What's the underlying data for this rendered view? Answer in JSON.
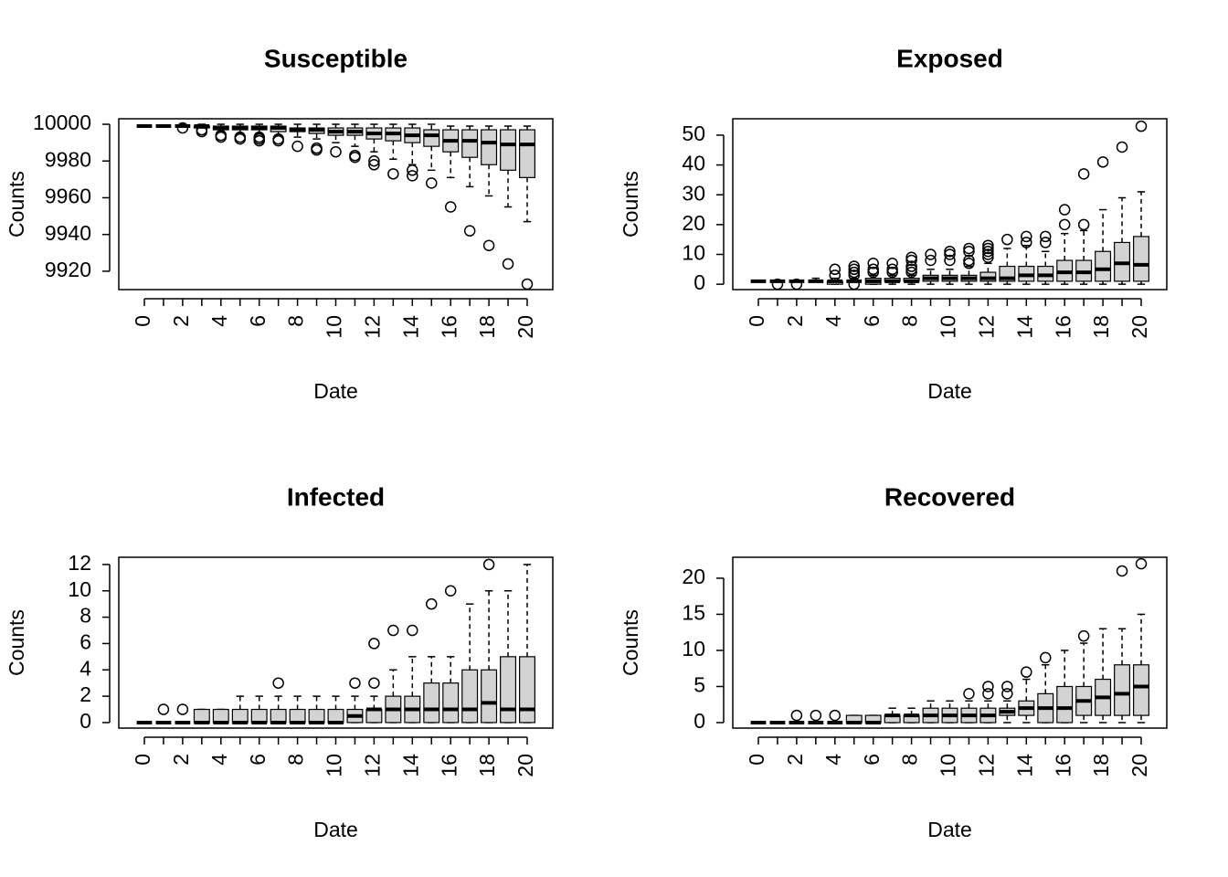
{
  "chart_data": [
    {
      "type": "box",
      "title": "Susceptible",
      "xlabel": "Date",
      "ylabel": "Counts",
      "color": "#d3d3d3",
      "categories": [
        "0",
        null,
        "2",
        null,
        "4",
        null,
        "6",
        null,
        "8",
        null,
        "10",
        null,
        "12",
        null,
        "14",
        null,
        "16",
        null,
        "18",
        null,
        "20"
      ],
      "ylim": [
        9910,
        10003
      ],
      "yticks": [
        9920,
        9940,
        9960,
        9980,
        10000
      ],
      "min": [
        9999,
        9999,
        9999,
        9998,
        9996,
        9995,
        9995,
        9994,
        9993,
        9992,
        9990,
        9988,
        9985,
        9981,
        9978,
        9975,
        9971,
        9966,
        9961,
        9955,
        9947
      ],
      "q1": [
        9999,
        9999,
        9999,
        9998,
        9997,
        9997,
        9997,
        9996,
        9996,
        9995,
        9994,
        9994,
        9992,
        9991,
        9990,
        9988,
        9985,
        9982,
        9978,
        9975,
        9971
      ],
      "median": [
        9999,
        9999,
        9999,
        9999,
        9998,
        9998,
        9998,
        9998,
        9997,
        9997,
        9996,
        9996,
        9995,
        9995,
        9994,
        9994,
        9991,
        9991,
        9990,
        9989,
        9989
      ],
      "q3": [
        9999,
        9999,
        9999,
        9999,
        9999,
        9999,
        9999,
        9999,
        9998,
        9998,
        9998,
        9998,
        9998,
        9998,
        9998,
        9997,
        9997,
        9997,
        9997,
        9997,
        9997
      ],
      "max": [
        9999,
        9999,
        10000,
        10000,
        10000,
        10000,
        10000,
        10000,
        10000,
        10000,
        10000,
        10000,
        10000,
        10000,
        10000,
        10000,
        9999,
        9999,
        9999,
        9999,
        9999
      ],
      "outliers": [
        [],
        [],
        [
          9998
        ],
        [
          9997,
          9996
        ],
        [
          9994,
          9993
        ],
        [
          9993,
          9992
        ],
        [
          9993,
          9992,
          9991
        ],
        [
          9992,
          9991
        ],
        [
          9988
        ],
        [
          9987,
          9986
        ],
        [
          9985
        ],
        [
          9983,
          9982
        ],
        [
          9980,
          9978
        ],
        [
          9973
        ],
        [
          9975,
          9972
        ],
        [
          9968
        ],
        [
          9955
        ],
        [
          9942
        ],
        [
          9934
        ],
        [
          9924
        ],
        [
          9913
        ]
      ]
    },
    {
      "type": "box",
      "title": "Exposed",
      "xlabel": "Date",
      "ylabel": "Counts",
      "color": "#d3d3d3",
      "categories": [
        "0",
        null,
        "2",
        null,
        "4",
        null,
        "6",
        null,
        "8",
        null,
        "10",
        null,
        "12",
        null,
        "14",
        null,
        "16",
        null,
        "18",
        null,
        "20"
      ],
      "ylim": [
        -1.8,
        55.5
      ],
      "yticks": [
        0,
        10,
        20,
        30,
        40,
        50
      ],
      "min": [
        1,
        1,
        1,
        1,
        0,
        1,
        0,
        0,
        0,
        0,
        0,
        0,
        0,
        0,
        0,
        0,
        0,
        0,
        0,
        0,
        0
      ],
      "q1": [
        1,
        1,
        1,
        1,
        0,
        1,
        0,
        1,
        1,
        1,
        1,
        1,
        1,
        1,
        1,
        1,
        1,
        1,
        1,
        1,
        1
      ],
      "median": [
        1,
        1,
        1,
        1,
        1,
        1,
        1,
        1,
        1,
        2,
        2,
        2,
        2,
        2,
        3,
        3,
        4,
        4,
        5,
        7,
        6.5
      ],
      "q3": [
        1,
        1,
        1,
        1,
        1,
        1,
        2,
        2,
        2,
        3,
        3,
        3,
        4,
        6,
        6,
        6,
        8,
        8,
        11,
        14,
        16
      ],
      "max": [
        1,
        1,
        1,
        2,
        2,
        2,
        3,
        3,
        3,
        5,
        5,
        6,
        7,
        12,
        13,
        11,
        17,
        18,
        25,
        29,
        31
      ],
      "outliers": [
        [],
        [
          0
        ],
        [
          0
        ],
        [],
        [
          5,
          3
        ],
        [
          6,
          5,
          4,
          3,
          0
        ],
        [
          7,
          5,
          4
        ],
        [
          7,
          5,
          4
        ],
        [
          9,
          8,
          6,
          5,
          4
        ],
        [
          10,
          8
        ],
        [
          11,
          10,
          8
        ],
        [
          12,
          11,
          8,
          7
        ],
        [
          13,
          12,
          11,
          10,
          9
        ],
        [
          15
        ],
        [
          16,
          14
        ],
        [
          16,
          14
        ],
        [
          25,
          20
        ],
        [
          37,
          20
        ],
        [
          41
        ],
        [
          46
        ],
        [
          53
        ]
      ]
    },
    {
      "type": "box",
      "title": "Infected",
      "xlabel": "Date",
      "ylabel": "Counts",
      "color": "#d3d3d3",
      "categories": [
        "0",
        null,
        "2",
        null,
        "4",
        null,
        "6",
        null,
        "8",
        null,
        "10",
        null,
        "12",
        null,
        "14",
        null,
        "16",
        null,
        "18",
        null,
        "20"
      ],
      "ylim": [
        -0.42,
        12.55
      ],
      "yticks": [
        0,
        2,
        4,
        6,
        8,
        10,
        12
      ],
      "min": [
        0,
        0,
        0,
        0,
        0,
        0,
        0,
        0,
        0,
        0,
        0,
        0,
        0,
        0,
        0,
        0,
        0,
        0,
        0,
        0,
        0
      ],
      "q1": [
        0,
        0,
        0,
        0,
        0,
        0,
        0,
        0,
        0,
        0,
        0,
        0,
        0,
        0,
        0,
        0,
        0,
        0,
        0,
        0,
        0
      ],
      "median": [
        0,
        0,
        0,
        0,
        0,
        0,
        0,
        0,
        0,
        0,
        0,
        0.5,
        1,
        1,
        1,
        1,
        1,
        1,
        1.5,
        1,
        1
      ],
      "q3": [
        0,
        0,
        0,
        1,
        1,
        1,
        1,
        1,
        1,
        1,
        1,
        1,
        1,
        2,
        2,
        3,
        3,
        4,
        4,
        5,
        5
      ],
      "max": [
        0,
        0,
        0,
        1,
        1,
        2,
        2,
        2,
        2,
        2,
        2,
        2,
        2,
        4,
        5,
        5,
        5,
        9,
        10,
        10,
        12
      ],
      "outliers": [
        [],
        [
          1
        ],
        [
          1
        ],
        [],
        [],
        [],
        [],
        [
          3
        ],
        [],
        [],
        [],
        [
          3
        ],
        [
          6,
          3
        ],
        [
          7
        ],
        [
          7
        ],
        [
          9
        ],
        [
          10
        ],
        [],
        [
          12
        ],
        [],
        []
      ]
    },
    {
      "type": "box",
      "title": "Recovered",
      "xlabel": "Date",
      "ylabel": "Counts",
      "color": "#d3d3d3",
      "categories": [
        "0",
        null,
        "2",
        null,
        "4",
        null,
        "6",
        null,
        "8",
        null,
        "10",
        null,
        "12",
        null,
        "14",
        null,
        "16",
        null,
        "18",
        null,
        "20"
      ],
      "ylim": [
        -0.76,
        22.9
      ],
      "yticks": [
        0,
        5,
        10,
        15,
        20
      ],
      "min": [
        0,
        0,
        0,
        0,
        0,
        0,
        0,
        0,
        0,
        0,
        0,
        0,
        0,
        0,
        0,
        0,
        0,
        0,
        0,
        0,
        0
      ],
      "q1": [
        0,
        0,
        0,
        0,
        0,
        0,
        0,
        0,
        0,
        0,
        0,
        0,
        0,
        1,
        1,
        0,
        0,
        1,
        1,
        1,
        1
      ],
      "median": [
        0,
        0,
        0,
        0,
        0,
        0,
        0,
        1,
        1,
        1,
        1,
        1,
        1,
        1.5,
        2,
        2,
        2,
        3,
        3.5,
        4,
        5
      ],
      "q3": [
        0,
        0,
        0,
        0,
        0,
        1,
        1,
        1,
        1,
        2,
        2,
        2,
        2,
        2,
        3,
        4,
        5,
        5,
        6,
        8,
        8
      ],
      "max": [
        0,
        0,
        0,
        0,
        0,
        1,
        1,
        2,
        2,
        3,
        3,
        3,
        3,
        3,
        6,
        8,
        10,
        11,
        13,
        13,
        15
      ],
      "outliers": [
        [],
        [],
        [
          1
        ],
        [
          1
        ],
        [
          1
        ],
        [],
        [],
        [],
        [],
        [],
        [],
        [
          4
        ],
        [
          5,
          4
        ],
        [
          5,
          4
        ],
        [
          7
        ],
        [
          9
        ],
        [],
        [
          12
        ],
        [],
        [
          21
        ],
        [
          22
        ]
      ]
    }
  ]
}
